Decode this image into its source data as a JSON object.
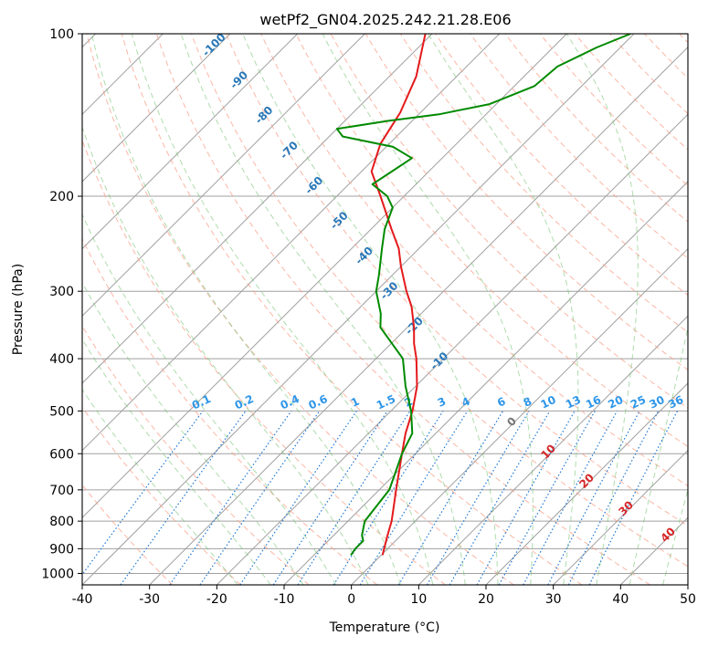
{
  "chart_data": {
    "type": "line",
    "title": "wetPf2_GN04.2025.242.21.28.E06",
    "xlabel": "Temperature (°C)",
    "ylabel": "Pressure (hPa)",
    "xlim": [
      -40,
      50
    ],
    "ylim": [
      1050,
      100
    ],
    "y_scale": "log",
    "skew": true,
    "grid": true,
    "x_ticks": [
      -40,
      -30,
      -20,
      -10,
      0,
      10,
      20,
      30,
      40,
      50
    ],
    "y_ticks": [
      100,
      200,
      300,
      400,
      500,
      600,
      700,
      800,
      900,
      1000
    ],
    "series": [
      {
        "color": "#e41a1c",
        "points": [
          [
            925,
            0.2
          ],
          [
            850,
            -2.0
          ],
          [
            800,
            -3.5
          ],
          [
            700,
            -7.5
          ],
          [
            600,
            -12.0
          ],
          [
            550,
            -14.5
          ],
          [
            500,
            -16.8
          ],
          [
            450,
            -19.8
          ],
          [
            400,
            -24.0
          ],
          [
            375,
            -26.6
          ],
          [
            350,
            -29.0
          ],
          [
            320,
            -32.5
          ],
          [
            300,
            -35.5
          ],
          [
            270,
            -40.0
          ],
          [
            250,
            -43.0
          ],
          [
            230,
            -47.0
          ],
          [
            200,
            -53.5
          ],
          [
            180,
            -58.5
          ],
          [
            160,
            -61.3
          ],
          [
            140,
            -63.0
          ],
          [
            120,
            -66.0
          ],
          [
            100,
            -71.0
          ]
        ]
      },
      {
        "color": "#008a00",
        "points": [
          [
            925,
            -4.5
          ],
          [
            900,
            -4.8
          ],
          [
            870,
            -4.8
          ],
          [
            850,
            -5.8
          ],
          [
            800,
            -7.5
          ],
          [
            700,
            -8.5
          ],
          [
            600,
            -12.0
          ],
          [
            550,
            -13.5
          ],
          [
            500,
            -17.0
          ],
          [
            450,
            -21.5
          ],
          [
            400,
            -26.0
          ],
          [
            350,
            -34.0
          ],
          [
            330,
            -36.0
          ],
          [
            300,
            -40.0
          ],
          [
            280,
            -42.0
          ],
          [
            250,
            -45.5
          ],
          [
            230,
            -48.0
          ],
          [
            210,
            -50.0
          ],
          [
            200,
            -52.5
          ],
          [
            190,
            -56.5
          ],
          [
            180,
            -55.5
          ],
          [
            170,
            -54.5
          ],
          [
            162,
            -59.0
          ],
          [
            155,
            -68.0
          ],
          [
            150,
            -70.0
          ],
          [
            145,
            -63.5
          ],
          [
            141,
            -57.0
          ],
          [
            135,
            -51.0
          ],
          [
            125,
            -47.0
          ],
          [
            115,
            -46.5
          ],
          [
            106,
            -43.5
          ],
          [
            100,
            -40.5
          ]
        ]
      }
    ],
    "dry_adiabat_labels": [
      "-100",
      "-90",
      "-80",
      "-70",
      "-60",
      "-50",
      "-40",
      "-30",
      "-20",
      "-10"
    ],
    "mixing_ratio_labels": [
      "0.1",
      "0.2",
      "0.4",
      "0.6",
      "1",
      "1.5",
      "2",
      "3",
      "4",
      "6",
      "8",
      "10",
      "13",
      "16",
      "20",
      "25",
      "30",
      "36"
    ],
    "moist_adiabat_labels": [
      "0",
      "10",
      "20",
      "30",
      "40"
    ],
    "colors": {
      "dry_adiabat": "#fa9f87",
      "moist_adiabat": "#6cbf6a",
      "mixing_ratio": "#1f77d4",
      "isotherm": "#a0a0a0",
      "isobar": "#a0a0a0",
      "dry_adiabat_label": "#2a78b8",
      "mixing_label": "#2e96e8",
      "moist_label": "#d62728"
    }
  }
}
